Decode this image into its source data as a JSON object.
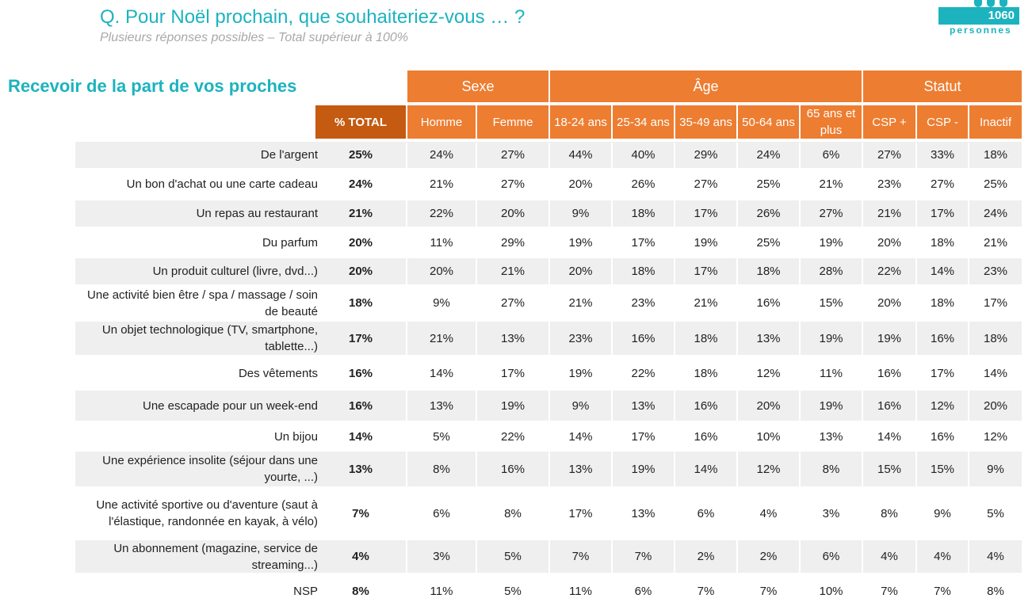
{
  "header": {
    "title": "Q. Pour Noël prochain, que souhaiteriez-vous …  ?",
    "subtitle": "Plusieurs réponses possibles – Total supérieur à 100%",
    "sample_size": "1060",
    "sample_unit": "personnes"
  },
  "section_title": "Recevoir de la part de vos proches",
  "colors": {
    "accent": "#1cb3bf",
    "header": "#ed7d31",
    "total_header": "#c55a11",
    "row_shade": "#efefef"
  },
  "table": {
    "groups": [
      "Sexe",
      "Âge",
      "Statut"
    ],
    "columns": [
      "% TOTAL",
      "Homme",
      "Femme",
      "18-24 ans",
      "25-34 ans",
      "35-49 ans",
      "50-64 ans",
      "65 ans et plus",
      "CSP +",
      "CSP -",
      "Inactif"
    ],
    "rows": [
      {
        "label": "De l'argent",
        "values": [
          "25%",
          "24%",
          "27%",
          "44%",
          "40%",
          "29%",
          "24%",
          "6%",
          "27%",
          "33%",
          "18%"
        ]
      },
      {
        "label": "Un bon d'achat ou une carte cadeau",
        "values": [
          "24%",
          "21%",
          "27%",
          "20%",
          "26%",
          "27%",
          "25%",
          "21%",
          "23%",
          "27%",
          "25%"
        ]
      },
      {
        "label": "Un repas au restaurant",
        "values": [
          "21%",
          "22%",
          "20%",
          "9%",
          "18%",
          "17%",
          "26%",
          "27%",
          "21%",
          "17%",
          "24%"
        ]
      },
      {
        "label": "Du parfum",
        "values": [
          "20%",
          "11%",
          "29%",
          "19%",
          "17%",
          "19%",
          "25%",
          "19%",
          "20%",
          "18%",
          "21%"
        ]
      },
      {
        "label": "Un produit culturel (livre, dvd...)",
        "values": [
          "20%",
          "20%",
          "21%",
          "20%",
          "18%",
          "17%",
          "18%",
          "28%",
          "22%",
          "14%",
          "23%"
        ]
      },
      {
        "label": "Une activité bien être / spa / massage / soin de beauté",
        "values": [
          "18%",
          "9%",
          "27%",
          "21%",
          "23%",
          "21%",
          "16%",
          "15%",
          "20%",
          "18%",
          "17%"
        ]
      },
      {
        "label": "Un objet technologique (TV, smartphone, tablette...)",
        "values": [
          "17%",
          "21%",
          "13%",
          "23%",
          "16%",
          "18%",
          "13%",
          "19%",
          "19%",
          "16%",
          "18%"
        ]
      },
      {
        "label": "Des vêtements",
        "values": [
          "16%",
          "14%",
          "17%",
          "19%",
          "22%",
          "18%",
          "12%",
          "11%",
          "16%",
          "17%",
          "14%"
        ]
      },
      {
        "label": "Une escapade pour un week-end",
        "values": [
          "16%",
          "13%",
          "19%",
          "9%",
          "13%",
          "16%",
          "20%",
          "19%",
          "16%",
          "12%",
          "20%"
        ]
      },
      {
        "label": "Un bijou",
        "values": [
          "14%",
          "5%",
          "22%",
          "14%",
          "17%",
          "16%",
          "10%",
          "13%",
          "14%",
          "16%",
          "12%"
        ]
      },
      {
        "label": "Une expérience insolite (séjour dans une yourte, ...)",
        "values": [
          "13%",
          "8%",
          "16%",
          "13%",
          "19%",
          "14%",
          "12%",
          "8%",
          "15%",
          "15%",
          "9%"
        ]
      },
      {
        "label": "Une activité sportive ou d'aventure (saut à l'élastique, randonnée en kayak, à vélo)",
        "values": [
          "7%",
          "6%",
          "8%",
          "17%",
          "13%",
          "6%",
          "4%",
          "3%",
          "8%",
          "9%",
          "5%"
        ]
      },
      {
        "label": "Un abonnement (magazine, service de streaming...)",
        "values": [
          "4%",
          "3%",
          "5%",
          "7%",
          "7%",
          "2%",
          "2%",
          "6%",
          "4%",
          "4%",
          "4%"
        ]
      },
      {
        "label": "NSP",
        "values": [
          "8%",
          "11%",
          "5%",
          "11%",
          "6%",
          "7%",
          "7%",
          "10%",
          "7%",
          "7%",
          "8%"
        ]
      }
    ]
  }
}
